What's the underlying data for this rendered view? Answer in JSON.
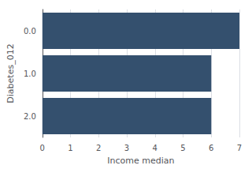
{
  "chart_data": {
    "type": "bar",
    "orientation": "horizontal",
    "categories": [
      "0.0",
      "1.0",
      "2.0"
    ],
    "values": [
      7.0,
      6.0,
      6.0
    ],
    "color": "#34506e",
    "xlabel": "Income median",
    "ylabel": "Diabetes_012",
    "xlim": [
      0,
      7
    ],
    "xticks": [
      0,
      1,
      2,
      3,
      4,
      5,
      6,
      7
    ],
    "grid": true
  }
}
